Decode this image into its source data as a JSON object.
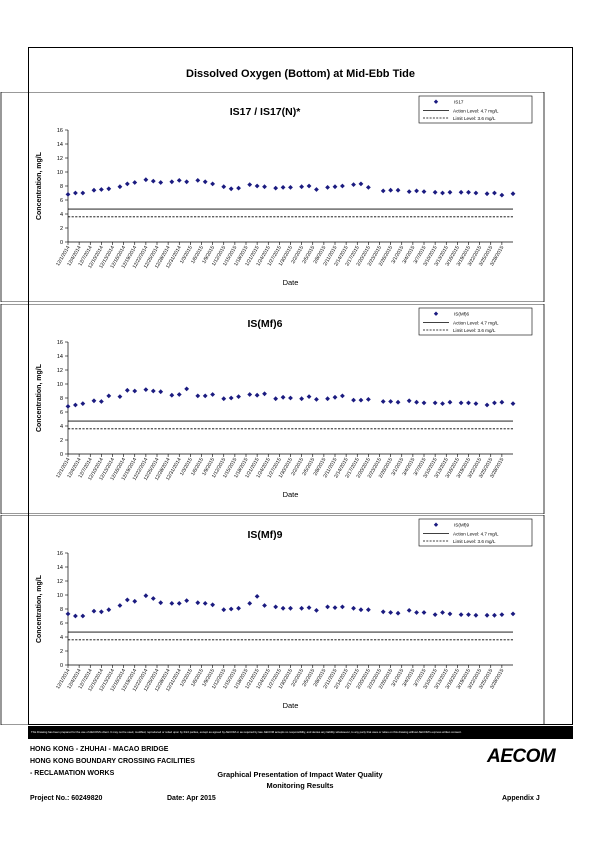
{
  "page_title": "Dissolved Oxygen (Bottom) at Mid-Ebb Tide",
  "footer": {
    "project_line1": "HONG KONG - ZHUHAI - MACAO BRIDGE",
    "project_line2": "HONG KONG BOUNDARY CROSSING FACILITIES",
    "project_line3": "- RECLAMATION WORKS",
    "doc_title_line1": "Graphical Presentation of Impact Water Quality",
    "doc_title_line2": "Monitoring Results",
    "project_no": "Project No.: 60249820",
    "date": "Date: Apr 2015",
    "appendix": "Appendix J",
    "logo": "AECOM",
    "disclaimer": "This Drawing has been prepared for the use of AECOM's client. It may not be used, modified, reproduced or relied upon by third parties, except as agreed by AECOM or as required by law. AECOM accepts no responsibility, and denies any liability whatsoever, to any party that uses or relies on this drawing without AECOM's express written consent."
  },
  "colors": {
    "marker": "#1b1b80",
    "line": "#000000"
  },
  "chart_data": [
    {
      "type": "scatter",
      "title": "IS17 / IS17(N)*",
      "xlabel": "Date",
      "ylabel": "Concentration, mg/L",
      "ylim": [
        0,
        16
      ],
      "yticks": [
        0,
        2,
        4,
        6,
        8,
        10,
        12,
        14,
        16
      ],
      "xticks": [
        "12/1/2014",
        "12/4/2014",
        "12/7/2014",
        "12/10/2014",
        "12/13/2014",
        "12/16/2014",
        "12/19/2014",
        "12/22/2014",
        "12/25/2014",
        "12/28/2014",
        "12/31/2014",
        "1/3/2015",
        "1/6/2015",
        "1/9/2015",
        "1/12/2015",
        "1/15/2015",
        "1/18/2015",
        "1/21/2015",
        "1/24/2015",
        "1/27/2015",
        "1/30/2015",
        "2/2/2015",
        "2/5/2015",
        "2/8/2015",
        "2/11/2015",
        "2/14/2015",
        "2/17/2015",
        "2/20/2015",
        "2/23/2015",
        "2/26/2015",
        "3/1/2015",
        "3/4/2015",
        "3/7/2015",
        "3/10/2015",
        "3/13/2015",
        "3/16/2015",
        "3/19/2015",
        "3/22/2015",
        "3/25/2015",
        "3/28/2015"
      ],
      "legend": [
        "IS17",
        "Action Level: 4.7 mg/L",
        "Limit Level: 3.6 mg/L"
      ],
      "legend_position": "top-right",
      "action_level": 4.7,
      "limit_level": 3.6,
      "series": [
        {
          "name": "IS17",
          "x": [
            "12/1/2014",
            "12/3/2014",
            "12/5/2014",
            "12/8/2014",
            "12/10/2014",
            "12/12/2014",
            "12/15/2014",
            "12/17/2014",
            "12/19/2014",
            "12/22/2014",
            "12/24/2014",
            "12/26/2014",
            "12/29/2014",
            "12/31/2014",
            "1/2/2015",
            "1/5/2015",
            "1/7/2015",
            "1/9/2015",
            "1/12/2015",
            "1/14/2015",
            "1/16/2015",
            "1/19/2015",
            "1/21/2015",
            "1/23/2015",
            "1/26/2015",
            "1/28/2015",
            "1/30/2015",
            "2/2/2015",
            "2/4/2015",
            "2/6/2015",
            "2/9/2015",
            "2/11/2015",
            "2/13/2015",
            "2/16/2015",
            "2/18/2015",
            "2/20/2015",
            "2/24/2015",
            "2/26/2015",
            "2/28/2015",
            "3/3/2015",
            "3/5/2015",
            "3/7/2015",
            "3/10/2015",
            "3/12/2015",
            "3/14/2015",
            "3/17/2015",
            "3/19/2015",
            "3/21/2015",
            "3/24/2015",
            "3/26/2015",
            "3/28/2015",
            "3/31/2015"
          ],
          "values": [
            6.8,
            7.0,
            7.0,
            7.4,
            7.5,
            7.6,
            7.9,
            8.3,
            8.5,
            8.9,
            8.7,
            8.5,
            8.6,
            8.8,
            8.6,
            8.8,
            8.6,
            8.3,
            7.9,
            7.6,
            7.7,
            8.2,
            8.0,
            7.9,
            7.7,
            7.8,
            7.8,
            7.9,
            8.0,
            7.5,
            7.8,
            7.9,
            8.0,
            8.2,
            8.3,
            7.8,
            7.3,
            7.4,
            7.4,
            7.2,
            7.3,
            7.2,
            7.1,
            7.0,
            7.1,
            7.1,
            7.1,
            7.0,
            6.9,
            7.0,
            6.7,
            6.9
          ]
        }
      ]
    },
    {
      "type": "scatter",
      "title": "IS(Mf)6",
      "xlabel": "Date",
      "ylabel": "Concentration, mg/L",
      "ylim": [
        0,
        16
      ],
      "yticks": [
        0,
        2,
        4,
        6,
        8,
        10,
        12,
        14,
        16
      ],
      "xticks": [
        "12/1/2014",
        "12/4/2014",
        "12/7/2014",
        "12/10/2014",
        "12/13/2014",
        "12/16/2014",
        "12/19/2014",
        "12/22/2014",
        "12/25/2014",
        "12/28/2014",
        "12/31/2014",
        "1/3/2015",
        "1/6/2015",
        "1/9/2015",
        "1/12/2015",
        "1/15/2015",
        "1/18/2015",
        "1/21/2015",
        "1/24/2015",
        "1/27/2015",
        "1/30/2015",
        "2/2/2015",
        "2/5/2015",
        "2/8/2015",
        "2/11/2015",
        "2/14/2015",
        "2/17/2015",
        "2/20/2015",
        "2/23/2015",
        "2/26/2015",
        "3/1/2015",
        "3/4/2015",
        "3/7/2015",
        "3/10/2015",
        "3/13/2015",
        "3/16/2015",
        "3/19/2015",
        "3/22/2015",
        "3/25/2015",
        "3/28/2015"
      ],
      "legend": [
        "IS(Mf)6",
        "Action Level: 4.7 mg/L",
        "Limit Level: 3.6 mg/L"
      ],
      "legend_position": "top-right",
      "action_level": 4.7,
      "limit_level": 3.6,
      "series": [
        {
          "name": "IS(Mf)6",
          "x": [
            "12/1/2014",
            "12/3/2014",
            "12/5/2014",
            "12/8/2014",
            "12/10/2014",
            "12/12/2014",
            "12/15/2014",
            "12/17/2014",
            "12/19/2014",
            "12/22/2014",
            "12/24/2014",
            "12/26/2014",
            "12/29/2014",
            "12/31/2014",
            "1/2/2015",
            "1/5/2015",
            "1/7/2015",
            "1/9/2015",
            "1/12/2015",
            "1/14/2015",
            "1/16/2015",
            "1/19/2015",
            "1/21/2015",
            "1/23/2015",
            "1/26/2015",
            "1/28/2015",
            "1/30/2015",
            "2/2/2015",
            "2/4/2015",
            "2/6/2015",
            "2/9/2015",
            "2/11/2015",
            "2/13/2015",
            "2/16/2015",
            "2/18/2015",
            "2/20/2015",
            "2/24/2015",
            "2/26/2015",
            "2/28/2015",
            "3/3/2015",
            "3/5/2015",
            "3/7/2015",
            "3/10/2015",
            "3/12/2015",
            "3/14/2015",
            "3/17/2015",
            "3/19/2015",
            "3/21/2015",
            "3/24/2015",
            "3/26/2015",
            "3/28/2015",
            "3/31/2015"
          ],
          "values": [
            6.8,
            7.0,
            7.2,
            7.6,
            7.5,
            8.3,
            8.2,
            9.1,
            9.0,
            9.2,
            9.0,
            8.9,
            8.4,
            8.5,
            9.3,
            8.3,
            8.3,
            8.5,
            7.9,
            8.0,
            8.2,
            8.5,
            8.4,
            8.6,
            7.9,
            8.1,
            8.0,
            7.9,
            8.2,
            7.8,
            7.9,
            8.1,
            8.3,
            7.7,
            7.7,
            7.8,
            7.5,
            7.5,
            7.4,
            7.6,
            7.4,
            7.3,
            7.3,
            7.2,
            7.4,
            7.3,
            7.3,
            7.2,
            7.0,
            7.3,
            7.4,
            7.2
          ]
        }
      ]
    },
    {
      "type": "scatter",
      "title": "IS(Mf)9",
      "xlabel": "Date",
      "ylabel": "Concentration, mg/L",
      "ylim": [
        0,
        16
      ],
      "yticks": [
        0,
        2,
        4,
        6,
        8,
        10,
        12,
        14,
        16
      ],
      "xticks": [
        "12/1/2014",
        "12/4/2014",
        "12/7/2014",
        "12/10/2014",
        "12/13/2014",
        "12/16/2014",
        "12/19/2014",
        "12/22/2014",
        "12/25/2014",
        "12/28/2014",
        "12/31/2014",
        "1/3/2015",
        "1/6/2015",
        "1/9/2015",
        "1/12/2015",
        "1/15/2015",
        "1/18/2015",
        "1/21/2015",
        "1/24/2015",
        "1/27/2015",
        "1/30/2015",
        "2/2/2015",
        "2/5/2015",
        "2/8/2015",
        "2/11/2015",
        "2/14/2015",
        "2/17/2015",
        "2/20/2015",
        "2/23/2015",
        "2/26/2015",
        "3/1/2015",
        "3/4/2015",
        "3/7/2015",
        "3/10/2015",
        "3/13/2015",
        "3/16/2015",
        "3/19/2015",
        "3/22/2015",
        "3/25/2015",
        "3/28/2015"
      ],
      "legend": [
        "IS(Mf)9",
        "Action Level: 4.7 mg/L",
        "Limit Level: 3.6 mg/L"
      ],
      "legend_position": "top-right",
      "action_level": 4.7,
      "limit_level": 3.6,
      "series": [
        {
          "name": "IS(Mf)9",
          "x": [
            "12/1/2014",
            "12/3/2014",
            "12/5/2014",
            "12/8/2014",
            "12/10/2014",
            "12/12/2014",
            "12/15/2014",
            "12/17/2014",
            "12/19/2014",
            "12/22/2014",
            "12/24/2014",
            "12/26/2014",
            "12/29/2014",
            "12/31/2014",
            "1/2/2015",
            "1/5/2015",
            "1/7/2015",
            "1/9/2015",
            "1/12/2015",
            "1/14/2015",
            "1/16/2015",
            "1/19/2015",
            "1/21/2015",
            "1/23/2015",
            "1/26/2015",
            "1/28/2015",
            "1/30/2015",
            "2/2/2015",
            "2/4/2015",
            "2/6/2015",
            "2/9/2015",
            "2/11/2015",
            "2/13/2015",
            "2/16/2015",
            "2/18/2015",
            "2/20/2015",
            "2/24/2015",
            "2/26/2015",
            "2/28/2015",
            "3/3/2015",
            "3/5/2015",
            "3/7/2015",
            "3/10/2015",
            "3/12/2015",
            "3/14/2015",
            "3/17/2015",
            "3/19/2015",
            "3/21/2015",
            "3/24/2015",
            "3/26/2015",
            "3/28/2015",
            "3/31/2015"
          ],
          "values": [
            7.3,
            7.0,
            7.0,
            7.7,
            7.6,
            7.9,
            8.5,
            9.3,
            9.1,
            9.9,
            9.5,
            8.9,
            8.8,
            8.8,
            9.2,
            8.9,
            8.8,
            8.6,
            7.9,
            8.0,
            8.1,
            8.8,
            9.8,
            8.5,
            8.3,
            8.1,
            8.1,
            8.1,
            8.2,
            7.8,
            8.3,
            8.2,
            8.3,
            8.1,
            7.9,
            7.9,
            7.6,
            7.5,
            7.4,
            7.8,
            7.5,
            7.5,
            7.2,
            7.5,
            7.3,
            7.2,
            7.2,
            7.1,
            7.1,
            7.1,
            7.2,
            7.3
          ]
        }
      ]
    }
  ]
}
